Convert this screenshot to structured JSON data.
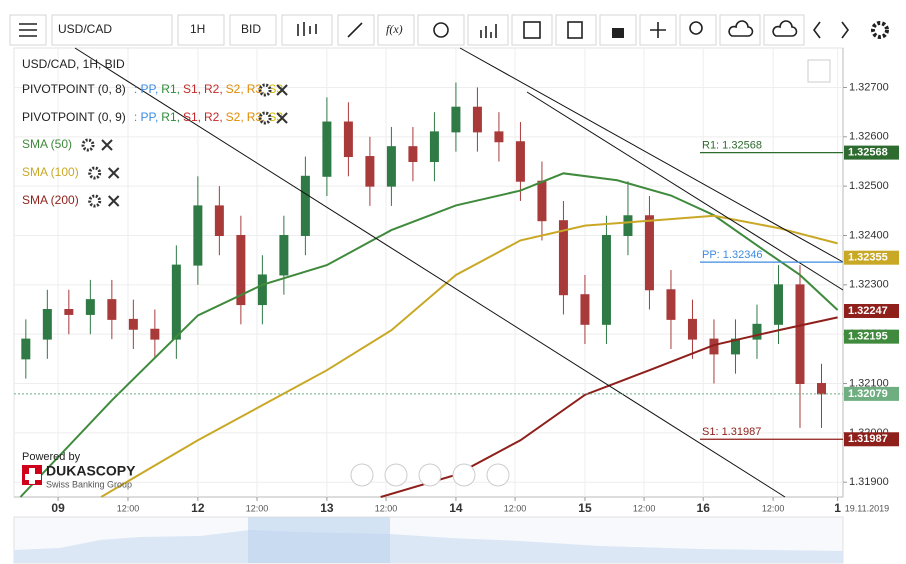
{
  "toolbar": {
    "symbol": "USD/CAD",
    "timeframe": "1H",
    "side": "BID",
    "fx": "f(x)"
  },
  "chart_data": {
    "type": "candlestick",
    "title": "USD/CAD, 1H, BID",
    "x": [
      -6,
      -2,
      2,
      6,
      10,
      14,
      18,
      22,
      26,
      30,
      34,
      38,
      42,
      46,
      50,
      54,
      58,
      62,
      66,
      70,
      74,
      78,
      82,
      86,
      90,
      94,
      98,
      102,
      106,
      110,
      114,
      118,
      122,
      126,
      130,
      134,
      138,
      142
    ],
    "open": [
      1.3215,
      1.3219,
      1.3225,
      1.3224,
      1.3227,
      1.3223,
      1.3221,
      1.3219,
      1.3234,
      1.3246,
      1.324,
      1.3226,
      1.3232,
      1.324,
      1.3252,
      1.3263,
      1.3256,
      1.325,
      1.3258,
      1.3255,
      1.3261,
      1.3266,
      1.3261,
      1.3259,
      1.3251,
      1.3243,
      1.3228,
      1.3222,
      1.324,
      1.3244,
      1.3229,
      1.3223,
      1.3219,
      1.3216,
      1.3219,
      1.3222,
      1.323,
      1.321
    ],
    "high": [
      1.3223,
      1.3229,
      1.3229,
      1.3231,
      1.3231,
      1.3227,
      1.3225,
      1.3238,
      1.3252,
      1.325,
      1.3244,
      1.3236,
      1.3244,
      1.3256,
      1.3268,
      1.3267,
      1.326,
      1.3262,
      1.3262,
      1.3265,
      1.3271,
      1.327,
      1.3265,
      1.3263,
      1.3255,
      1.3247,
      1.3232,
      1.3244,
      1.3251,
      1.3248,
      1.3233,
      1.3227,
      1.3223,
      1.3223,
      1.3226,
      1.3234,
      1.3234,
      1.3214
    ],
    "low": [
      1.3211,
      1.3215,
      1.322,
      1.322,
      1.3219,
      1.3217,
      1.3215,
      1.3215,
      1.323,
      1.3236,
      1.3222,
      1.3222,
      1.3228,
      1.3236,
      1.3248,
      1.3252,
      1.3246,
      1.3246,
      1.3251,
      1.3251,
      1.3257,
      1.3257,
      1.3255,
      1.3247,
      1.3239,
      1.3224,
      1.3218,
      1.3218,
      1.3236,
      1.3225,
      1.3217,
      1.3215,
      1.321,
      1.3212,
      1.3215,
      1.3218,
      1.3201,
      1.3201
    ],
    "close": [
      1.3219,
      1.3225,
      1.3224,
      1.3227,
      1.3223,
      1.3221,
      1.3219,
      1.3234,
      1.3246,
      1.324,
      1.3226,
      1.3232,
      1.324,
      1.3252,
      1.3263,
      1.3256,
      1.325,
      1.3258,
      1.3255,
      1.3261,
      1.3266,
      1.3261,
      1.3259,
      1.3251,
      1.3243,
      1.3228,
      1.3222,
      1.324,
      1.3244,
      1.3229,
      1.3223,
      1.3219,
      1.3216,
      1.3219,
      1.3222,
      1.323,
      1.321,
      1.32079
    ],
    "up_color": "#2f7a45",
    "down_color": "#a93a3a",
    "xlim": [
      -8.2,
      146
    ],
    "xticks": [
      {
        "value": 0,
        "label": "09"
      },
      {
        "value": 13,
        "label": "12:00"
      },
      {
        "value": 26,
        "label": "12"
      },
      {
        "value": 37,
        "label": "12:00"
      },
      {
        "value": 50,
        "label": "13"
      },
      {
        "value": 61,
        "label": "12:00"
      },
      {
        "value": 74,
        "label": "14"
      },
      {
        "value": 85,
        "label": "12:00"
      },
      {
        "value": 98,
        "label": "15"
      },
      {
        "value": 109,
        "label": "12:00"
      },
      {
        "value": 120,
        "label": "16"
      },
      {
        "value": 133,
        "label": "12:00"
      },
      {
        "value": 145,
        "label": "1"
      }
    ],
    "date_label": "19.11.2019",
    "ylim": [
      1.3187,
      1.3278
    ],
    "yticks": [
      {
        "value": 1.319,
        "label": "1.31900"
      },
      {
        "value": 1.32,
        "label": "1.32000"
      },
      {
        "value": 1.321,
        "label": "1.32100"
      },
      {
        "value": 1.322,
        "label": "1.32200"
      },
      {
        "value": 1.323,
        "label": "1.32300"
      },
      {
        "value": 1.324,
        "label": "1.32400"
      },
      {
        "value": 1.325,
        "label": "1.32500"
      },
      {
        "value": 1.326,
        "label": "1.32600"
      },
      {
        "value": 1.327,
        "label": "1.32700"
      }
    ],
    "grid": true,
    "indicators": [
      {
        "name": "PIVOTPOINT (0, 8)",
        "levels": [
          {
            "text": ": PP,",
            "color": "#3d8be0"
          },
          {
            "text": "R1,",
            "color": "#2e8b3a"
          },
          {
            "text": "S1,",
            "color": "#c62828"
          },
          {
            "text": "R2,",
            "color": "#c62828"
          },
          {
            "text": "S2,",
            "color": "#e08a00"
          },
          {
            "text": "R3,",
            "color": "#e08a00"
          },
          {
            "text": "S3",
            "color": "#d4b800"
          }
        ]
      },
      {
        "name": "PIVOTPOINT (0, 9)",
        "levels": [
          {
            "text": ": PP,",
            "color": "#3d8be0"
          },
          {
            "text": "R1,",
            "color": "#2e8b3a"
          },
          {
            "text": "S1,",
            "color": "#c62828"
          },
          {
            "text": "R2,",
            "color": "#c62828"
          },
          {
            "text": "S2,",
            "color": "#e08a00"
          },
          {
            "text": "R3,",
            "color": "#e08a00"
          },
          {
            "text": "S3",
            "color": "#d4b800"
          }
        ]
      }
    ],
    "series": [
      {
        "name": "SMA (50)",
        "color": "#3f8a3c",
        "x": [
          -7,
          10,
          26,
          38,
          50,
          62,
          74,
          86,
          94,
          104,
          114,
          122,
          130,
          138,
          145
        ],
        "values": [
          1.3187,
          1.32066,
          1.32238,
          1.323,
          1.3234,
          1.32411,
          1.32461,
          1.32491,
          1.32526,
          1.32512,
          1.32481,
          1.32441,
          1.3238,
          1.3232,
          1.32249
        ]
      },
      {
        "name": "SMA (100)",
        "color": "#c9a825",
        "x": [
          8,
          26,
          50,
          62,
          74,
          86,
          98,
          110,
          122,
          134,
          145
        ],
        "values": [
          1.3187,
          1.31985,
          1.32127,
          1.32208,
          1.3232,
          1.3239,
          1.3242,
          1.3243,
          1.3244,
          1.32415,
          1.32384
        ]
      },
      {
        "name": "SMA (200)",
        "color": "#8e1f1a",
        "x": [
          60,
          74,
          86,
          98,
          110,
          122,
          134,
          145
        ],
        "values": [
          1.3187,
          1.31915,
          1.31985,
          1.32077,
          1.32127,
          1.32178,
          1.32208,
          1.32234
        ]
      }
    ],
    "pivots": [
      {
        "label": "R1: 1.32568",
        "value": 1.32568,
        "color": "#2e6b2e"
      },
      {
        "label": "PP: 1.32346",
        "value": 1.32346,
        "color": "#3d8be0"
      },
      {
        "label": "S1: 1.31987",
        "value": 1.31987,
        "color": "#8e1f1a"
      }
    ],
    "price_labels": [
      {
        "value": 1.32568,
        "color": "#2e6b2e"
      },
      {
        "value": 1.32355,
        "color": "#c9a825"
      },
      {
        "value": 1.32247,
        "color": "#8e1f1a"
      },
      {
        "value": 1.32195,
        "color": "#3f8a3c"
      },
      {
        "value": 1.32079,
        "color": "#6fae80"
      },
      {
        "value": 1.31987,
        "color": "#8e1f1a"
      }
    ],
    "current_price": 1.32079
  },
  "branding": {
    "powered": "Powered by",
    "brand": "DUKASCOPY",
    "tagline": "Swiss Banking Group"
  }
}
